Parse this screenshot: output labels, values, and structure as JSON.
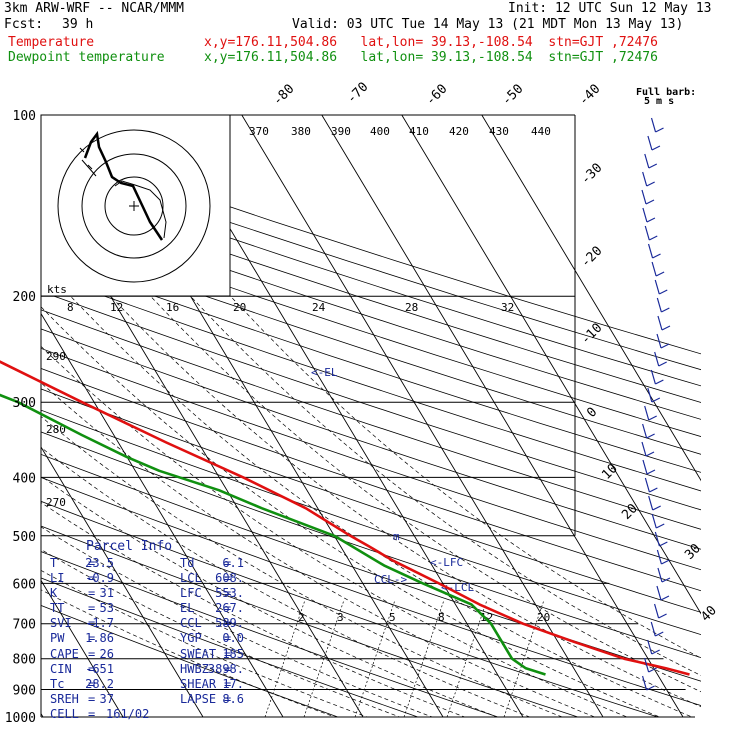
{
  "header": {
    "model": "3km ARW-WRF -- NCAR/MMM",
    "init": "Init: 12 UTC Sun 12 May 13",
    "fcst_label": "Fcst:",
    "fcst_value": "39 h",
    "valid": "Valid: 03 UTC Tue 14 May 13 (21 MDT Mon 13 May 13)",
    "temperature_label": "Temperature",
    "temperature_loc": "x,y=176.11,504.86   lat,lon= 39.13,-108.54  stn=GJT ,72476",
    "dewpoint_label": "Dewpoint temperature",
    "dewpoint_loc": "x,y=176.11,504.86   lat,lon= 39.13,-108.54  stn=GJT ,72476"
  },
  "colors": {
    "temperature": "#e01010",
    "dewpoint": "#109010",
    "annotation": "#1a2a9a"
  },
  "full_barb_label": "Full barb:",
  "full_barb_units": "5 m s",
  "hodograph_units": "kts",
  "theta_e_labels": [
    "370",
    "380",
    "390",
    "400",
    "410",
    "420",
    "430",
    "440"
  ],
  "mixing_ratio_labels": [
    "8",
    "12",
    "16",
    "20",
    "24",
    "28",
    "32"
  ],
  "lower_mixing_labels": [
    "2",
    "3",
    "5",
    "8",
    "12",
    "20"
  ],
  "theta_labels": [
    "290",
    "280",
    "270"
  ],
  "markers": {
    "el": "<-EL",
    "lfc": "<-LFC",
    "ccl": "CCL->",
    "lcl": "<-LCL"
  },
  "parcel_info": {
    "title": "Parcel Info",
    "rows": [
      [
        "T",
        "23.5",
        "Td",
        "6.1"
      ],
      [
        "LI",
        "-0.9",
        "LCL",
        "608."
      ],
      [
        "K",
        "31",
        "LFC",
        "553."
      ],
      [
        "TT",
        "53",
        "EL",
        "267."
      ],
      [
        "SVI",
        "-1.7",
        "CCL",
        "589."
      ],
      [
        "PW",
        "1.86",
        "YGP",
        "0.0"
      ],
      [
        "CAPE",
        "26",
        "SWEAT",
        "185"
      ],
      [
        "CIN",
        "-651",
        "HWBZ",
        "3898."
      ],
      [
        "Tc",
        "28.2",
        "SHEAR",
        "17."
      ],
      [
        "SREH",
        "37",
        "LAPSE",
        "8.6"
      ]
    ],
    "cell_label": "CELL",
    "cell_value": "161/02"
  },
  "chart_data": {
    "type": "line",
    "diagram": "skew-T log-p",
    "y_axis": "pressure (hPa)",
    "pressure_ticks": [
      100,
      200,
      300,
      400,
      500,
      600,
      700,
      800,
      900,
      1000
    ],
    "temperature_ticks": [
      -80,
      -70,
      -60,
      -50,
      -40,
      -30,
      -20,
      -10,
      0,
      10,
      20,
      30,
      40
    ],
    "series": [
      {
        "name": "Temperature",
        "points": [
          [
            850,
            24
          ],
          [
            830,
            21.5
          ],
          [
            800,
            17
          ],
          [
            750,
            12
          ],
          [
            700,
            7
          ],
          [
            650,
            3
          ],
          [
            600,
            -0.5
          ],
          [
            550,
            -4.5
          ],
          [
            520,
            -6.5
          ],
          [
            500,
            -8
          ],
          [
            450,
            -11.5
          ],
          [
            400,
            -17
          ],
          [
            350,
            -24
          ],
          [
            300,
            -31.5
          ],
          [
            250,
            -40
          ],
          [
            200,
            -50
          ],
          [
            175,
            -56
          ],
          [
            150,
            -62.5
          ],
          [
            125,
            -67
          ],
          [
            110,
            -69
          ],
          [
            100,
            -70
          ]
        ]
      },
      {
        "name": "Dewpoint temperature",
        "points": [
          [
            850,
            6
          ],
          [
            830,
            4
          ],
          [
            800,
            3
          ],
          [
            750,
            3
          ],
          [
            700,
            3
          ],
          [
            650,
            2
          ],
          [
            600,
            -2.5
          ],
          [
            560,
            -6
          ],
          [
            500,
            -10
          ],
          [
            450,
            -17
          ],
          [
            420,
            -21
          ],
          [
            390,
            -27
          ],
          [
            370,
            -30
          ],
          [
            340,
            -34
          ],
          [
            300,
            -39.5
          ],
          [
            250,
            -51
          ],
          [
            220,
            -61
          ],
          [
            200,
            -71
          ],
          [
            180,
            -73.5
          ],
          [
            150,
            -76
          ],
          [
            130,
            -77
          ],
          [
            115,
            -77.5
          ],
          [
            100,
            -78
          ]
        ]
      }
    ]
  }
}
